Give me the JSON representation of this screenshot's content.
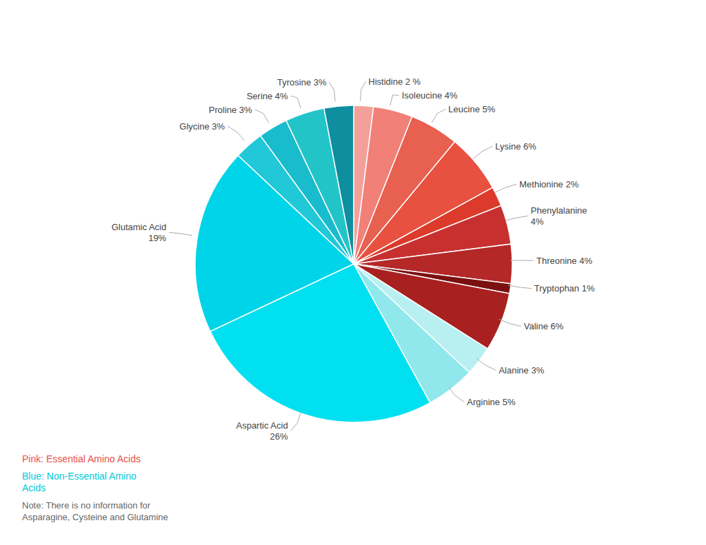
{
  "chart_data": {
    "type": "pie",
    "categories": [
      "Histidine 2 %",
      "Isoleucine 4%",
      "Leucine 5%",
      "Lysine 6%",
      "Methionine 2%",
      "Phenylalanine\n4%",
      "Threonine 4%",
      "Tryptophan 1%",
      "Valine 6%",
      "Alanine 3%",
      "Arginine 5%",
      "Aspartic Acid\n26%",
      "Glutamic Acid\n19%",
      "Glycine 3%",
      "Proline 3%",
      "Serine 4%",
      "Tyrosine 3%"
    ],
    "values": [
      2,
      4,
      5,
      6,
      2,
      4,
      4,
      1,
      6,
      3,
      5,
      26,
      19,
      3,
      3,
      4,
      3
    ],
    "colors": [
      "#F4A09A",
      "#F08078",
      "#E86050",
      "#E85040",
      "#DC3A2A",
      "#C83030",
      "#B52828",
      "#7A1010",
      "#A82020",
      "#B8F0F2",
      "#90E8EC",
      "#00E0F0",
      "#00D4E8",
      "#20C8D8",
      "#18BCCC",
      "#22C4C8",
      "#0E8E9E"
    ],
    "annotations": [
      {
        "text": "Pink: Essential Amino Acids",
        "color": "#E8504A"
      },
      {
        "text": "Blue: Non-Essential Amino\nAcids",
        "color": "#00C8D8"
      },
      {
        "text": "Note: There is no information for\nAsparagine, Cysteine and Glutamine",
        "color": "#666666"
      }
    ]
  }
}
